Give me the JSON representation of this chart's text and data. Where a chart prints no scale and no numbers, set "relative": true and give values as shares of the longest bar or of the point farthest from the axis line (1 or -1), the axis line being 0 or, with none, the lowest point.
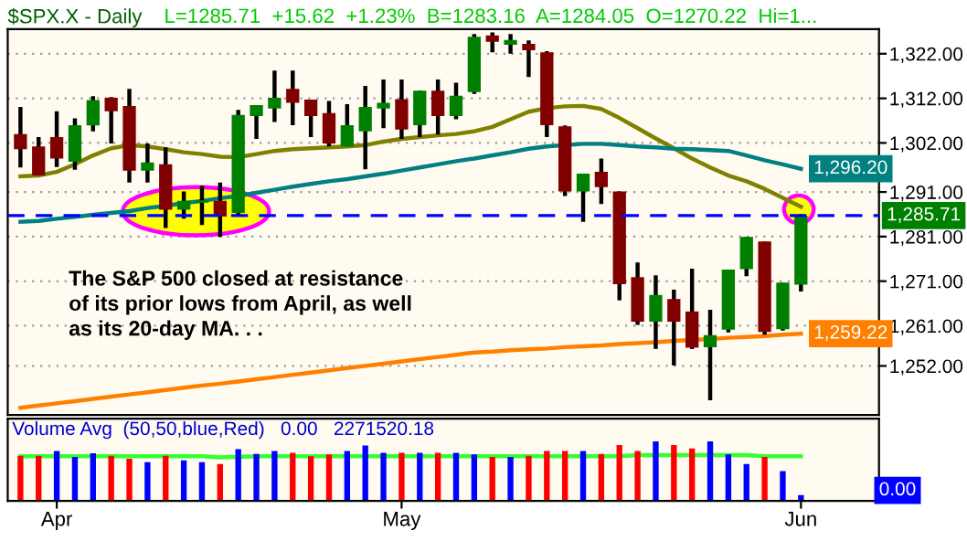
{
  "chart_data": [
    {
      "type": "candlestick",
      "title": "$SPX.X - Daily",
      "subtitle": "L=1285.71  +15.62  +1.23%  B=1283.16  A=1284.05  O=1270.22  Hi=1...",
      "categories": [
        null,
        null,
        null,
        null,
        null,
        null,
        null,
        null,
        null,
        null,
        null,
        null,
        null,
        null,
        null,
        null,
        null,
        null,
        null,
        null,
        null,
        null,
        null,
        null,
        null,
        null,
        null,
        null,
        null,
        null,
        null,
        null,
        null,
        null,
        null,
        null,
        null,
        null,
        null,
        null,
        null,
        null,
        null,
        null
      ],
      "ohlc": [
        [
          1304.0,
          1310.1,
          1296.5,
          1300.6
        ],
        [
          1301.2,
          1303.3,
          1294.7,
          1294.7
        ],
        [
          1303.3,
          1309.1,
          1296.6,
          1298.5
        ],
        [
          1297.8,
          1307.5,
          1296.0,
          1306.0
        ],
        [
          1305.9,
          1312.5,
          1304.6,
          1311.6
        ],
        [
          1312.1,
          1312.3,
          1301.9,
          1309.1
        ],
        [
          1310.3,
          1314.1,
          1293.1,
          1295.8
        ],
        [
          1295.8,
          1301.9,
          1293.1,
          1297.6
        ],
        [
          1297.2,
          1301.0,
          1282.9,
          1287.0
        ],
        [
          1287.0,
          1291.1,
          1285.0,
          1289.0
        ],
        [
          1288.6,
          1292.4,
          1283.6,
          1289.1
        ],
        [
          1289.0,
          1293.1,
          1280.9,
          1285.5
        ],
        [
          1286.3,
          1309.4,
          1285.6,
          1308.3
        ],
        [
          1308.0,
          1310.5,
          1302.9,
          1310.5
        ],
        [
          1309.7,
          1318.2,
          1306.7,
          1312.1
        ],
        [
          1314.1,
          1318.2,
          1306.0,
          1311.0
        ],
        [
          1311.7,
          1311.7,
          1303.3,
          1308.0
        ],
        [
          1308.7,
          1311.4,
          1301.2,
          1301.9
        ],
        [
          1301.2,
          1310.7,
          1301.2,
          1306.0
        ],
        [
          1304.6,
          1314.8,
          1296.1,
          1310.1
        ],
        [
          1309.7,
          1316.2,
          1305.3,
          1311.0
        ],
        [
          1311.8,
          1316.2,
          1302.9,
          1305.0
        ],
        [
          1306.0,
          1313.7,
          1303.3,
          1313.7
        ],
        [
          1313.7,
          1316.2,
          1303.9,
          1308.0
        ],
        [
          1308.0,
          1315.5,
          1307.3,
          1312.6
        ],
        [
          1313.4,
          1326.4,
          1313.0,
          1325.8
        ],
        [
          1326.1,
          1326.8,
          1322.3,
          1324.7
        ],
        [
          1324.0,
          1326.4,
          1322.0,
          1325.1
        ],
        [
          1324.2,
          1325.0,
          1316.8,
          1322.8
        ],
        [
          1322.3,
          1322.6,
          1303.3,
          1306.0
        ],
        [
          1305.7,
          1305.9,
          1290.1,
          1291.1
        ],
        [
          1291.1,
          1295.1,
          1284.3,
          1295.1
        ],
        [
          1295.5,
          1298.5,
          1288.3,
          1292.1
        ],
        [
          1291.1,
          1291.1,
          1266.7,
          1270.3
        ],
        [
          1271.9,
          1275.2,
          1261.2,
          1261.9
        ],
        [
          1261.9,
          1272.3,
          1255.8,
          1267.9
        ],
        [
          1267.0,
          1269.1,
          1252.1,
          1261.9
        ],
        [
          1264.2,
          1273.8,
          1255.8,
          1256.1
        ],
        [
          1256.2,
          1264.6,
          1244.3,
          1258.9
        ],
        [
          1260.1,
          1273.6,
          1259.5,
          1273.6
        ],
        [
          1273.7,
          1280.9,
          1272.1,
          1280.9
        ],
        [
          1279.9,
          1279.9,
          1259.0,
          1259.6
        ],
        [
          1260.2,
          1270.7,
          1259.9,
          1270.7
        ],
        [
          1270.2,
          1286.0,
          1268.7,
          1285.7
        ]
      ],
      "colors": [
        "#800000",
        "#800000",
        "#800000",
        "#008000",
        "#008000",
        "#800000",
        "#800000",
        "#008000",
        "#800000",
        "#008000",
        "#008000",
        "#800000",
        "#008000",
        "#008000",
        "#008000",
        "#800000",
        "#800000",
        "#800000",
        "#008000",
        "#008000",
        "#008000",
        "#800000",
        "#008000",
        "#800000",
        "#008000",
        "#008000",
        "#800000",
        "#008000",
        "#800000",
        "#800000",
        "#800000",
        "#008000",
        "#800000",
        "#800000",
        "#800000",
        "#008000",
        "#800000",
        "#800000",
        "#008000",
        "#008000",
        "#008000",
        "#800000",
        "#008000",
        "#008000"
      ],
      "series": [
        {
          "type": "line",
          "color": "#808000",
          "values": [
            1294.5,
            1294.7,
            1295.5,
            1297.2,
            1299.2,
            1300.8,
            1301.5,
            1301.2,
            1300.6,
            1299.9,
            1299.5,
            1298.9,
            1298.8,
            1299.5,
            1300.2,
            1300.6,
            1300.8,
            1301.0,
            1301.2,
            1301.5,
            1302.3,
            1302.9,
            1303.3,
            1303.7,
            1304.0,
            1304.6,
            1305.6,
            1307.3,
            1309.0,
            1309.8,
            1310.2,
            1310.3,
            1309.6,
            1307.6,
            1305.3,
            1303.0,
            1300.8,
            1298.5,
            1296.5,
            1294.7,
            1293.4,
            1291.7,
            1289.7,
            1287.7
          ]
        },
        {
          "type": "line",
          "color": "#008080",
          "values": [
            1284.3,
            1284.5,
            1285.0,
            1285.4,
            1285.9,
            1286.3,
            1286.7,
            1287.4,
            1287.9,
            1288.5,
            1289.0,
            1289.6,
            1290.1,
            1290.8,
            1291.5,
            1292.2,
            1292.8,
            1293.4,
            1293.9,
            1294.5,
            1295.1,
            1295.8,
            1296.5,
            1297.2,
            1297.9,
            1298.5,
            1299.2,
            1299.9,
            1300.7,
            1301.2,
            1301.5,
            1301.8,
            1301.8,
            1301.5,
            1301.2,
            1301.0,
            1300.7,
            1300.6,
            1300.4,
            1300.2,
            1299.2,
            1298.1,
            1297.2,
            1296.2
          ],
          "value_labels": [
            null,
            null,
            null,
            null,
            null,
            null,
            null,
            null,
            null,
            null,
            null,
            null,
            null,
            null,
            null,
            null,
            null,
            null,
            null,
            null,
            null,
            null,
            null,
            null,
            null,
            null,
            null,
            null,
            null,
            null,
            null,
            null,
            null,
            null,
            null,
            null,
            null,
            null,
            null,
            null,
            null,
            null,
            null,
            "1,296.20"
          ]
        },
        {
          "type": "line",
          "color": "#ff8000",
          "values": [
            1242.6,
            1243.1,
            1243.6,
            1244.1,
            1244.6,
            1245.1,
            1245.6,
            1246.1,
            1246.6,
            1247.1,
            1247.6,
            1248.0,
            1248.5,
            1249.0,
            1249.5,
            1250.0,
            1250.5,
            1251.0,
            1251.5,
            1252.0,
            1252.5,
            1253.0,
            1253.5,
            1254.0,
            1254.5,
            1255.0,
            1255.2,
            1255.5,
            1255.7,
            1255.9,
            1256.2,
            1256.4,
            1256.6,
            1256.9,
            1257.1,
            1257.3,
            1257.6,
            1257.8,
            1258.0,
            1258.3,
            1258.5,
            1258.7,
            1259.0,
            1259.22
          ],
          "value_labels": [
            null,
            null,
            null,
            null,
            null,
            null,
            null,
            null,
            null,
            null,
            null,
            null,
            null,
            null,
            null,
            null,
            null,
            null,
            null,
            null,
            null,
            null,
            null,
            null,
            null,
            null,
            null,
            null,
            null,
            null,
            null,
            null,
            null,
            null,
            null,
            null,
            null,
            null,
            null,
            null,
            null,
            null,
            null,
            "1,259.22"
          ]
        }
      ],
      "ylim": [
        1241,
        1327.5
      ],
      "yticks": [
        {
          "value": 1322,
          "label": "1,322.00"
        },
        {
          "value": 1312,
          "label": "1,312.00"
        },
        {
          "value": 1302,
          "label": "1,302.00"
        },
        {
          "value": 1291,
          "label": "1,291.00"
        },
        {
          "value": 1281,
          "label": "1,281.00"
        },
        {
          "value": 1271,
          "label": "1,271.00"
        },
        {
          "value": 1261,
          "label": "1,261.00"
        },
        {
          "value": 1252,
          "label": "1,252.00"
        }
      ],
      "ref_lines": [
        {
          "axis": "y",
          "value": 1285.71,
          "label": "1,285.71",
          "color": "#0000ff",
          "line_style": "dashed"
        }
      ],
      "annotations": [
        "The S&P 500 closed at resistance\nof its prior lows from April, as well\nas its 20-day MA. . ."
      ],
      "grid": "y",
      "tick_labels": "y"
    },
    {
      "type": "bar",
      "title": "Volume Avg  (50,50,blue,Red)   0.00   2271520.18",
      "relative": true,
      "categories": [
        null,
        null,
        "Apr",
        null,
        null,
        null,
        null,
        null,
        null,
        null,
        null,
        null,
        null,
        null,
        null,
        null,
        null,
        null,
        null,
        null,
        null,
        "May",
        null,
        null,
        null,
        null,
        null,
        null,
        null,
        null,
        null,
        null,
        null,
        null,
        null,
        null,
        null,
        null,
        null,
        null,
        null,
        null,
        null,
        "Jun"
      ],
      "series": [
        {
          "type": "bar",
          "colors": [
            "#ff0000",
            "#ff0000",
            "#0000ff",
            "#0000ff",
            "#0000ff",
            "#ff0000",
            "#ff0000",
            "#0000ff",
            "#ff0000",
            "#0000ff",
            "#0000ff",
            "#ff0000",
            "#0000ff",
            "#0000ff",
            "#0000ff",
            "#ff0000",
            "#ff0000",
            "#ff0000",
            "#0000ff",
            "#0000ff",
            "#0000ff",
            "#ff0000",
            "#0000ff",
            "#ff0000",
            "#0000ff",
            "#0000ff",
            "#ff0000",
            "#0000ff",
            "#ff0000",
            "#ff0000",
            "#ff0000",
            "#0000ff",
            "#ff0000",
            "#ff0000",
            "#ff0000",
            "#0000ff",
            "#ff0000",
            "#ff0000",
            "#0000ff",
            "#0000ff",
            "#0000ff",
            "#ff0000",
            "#0000ff",
            "#0000ff"
          ],
          "values": [
            0.76,
            0.76,
            0.84,
            0.74,
            0.8,
            0.76,
            0.71,
            0.65,
            0.76,
            0.68,
            0.65,
            0.62,
            0.87,
            0.79,
            0.84,
            0.81,
            0.75,
            0.78,
            0.84,
            0.93,
            0.81,
            0.81,
            0.81,
            0.81,
            0.81,
            0.78,
            0.74,
            0.74,
            0.76,
            0.84,
            0.84,
            0.84,
            0.79,
            0.94,
            0.84,
            1,
            0.94,
            0.88,
            1,
            0.78,
            0.62,
            0.74,
            0.5,
            0.1
          ]
        },
        {
          "type": "line",
          "color": "#33ff33",
          "values": [
            0.75,
            0.75,
            0.75,
            0.75,
            0.75,
            0.75,
            0.75,
            0.75,
            0.75,
            0.75,
            0.75,
            0.73,
            0.74,
            0.75,
            0.75,
            0.75,
            0.75,
            0.75,
            0.75,
            0.75,
            0.75,
            0.75,
            0.75,
            0.75,
            0.75,
            0.75,
            0.75,
            0.75,
            0.75,
            0.75,
            0.75,
            0.75,
            0.75,
            0.75,
            0.77,
            0.77,
            0.77,
            0.77,
            0.77,
            0.77,
            0.77,
            0.75,
            0.75,
            0.75
          ]
        }
      ],
      "annotations": [
        "0.00"
      ],
      "tick_labels": "x"
    }
  ]
}
